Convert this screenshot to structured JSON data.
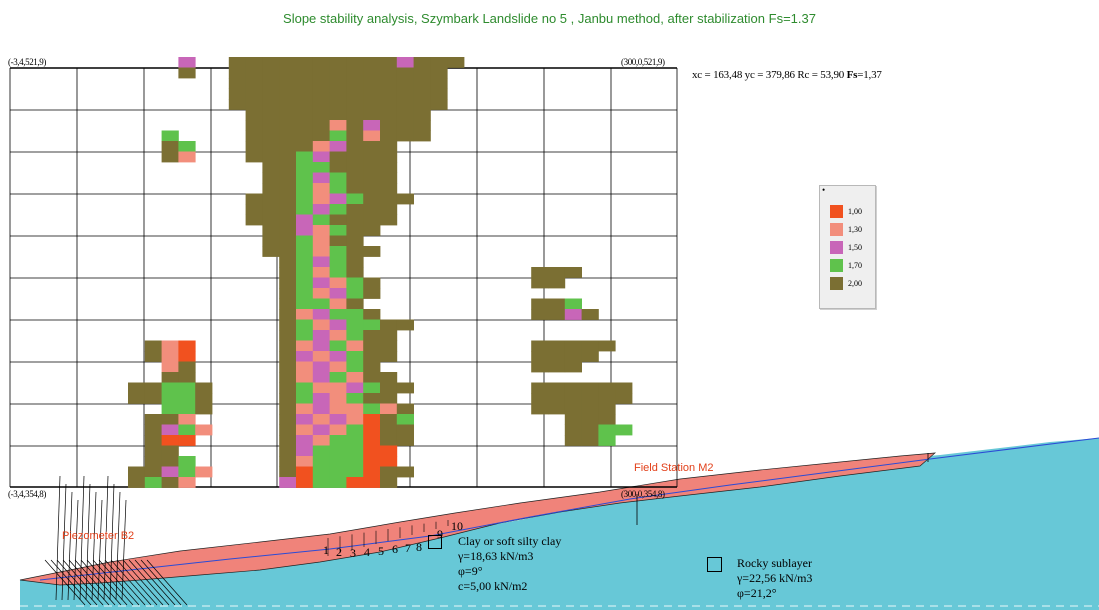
{
  "title": "Slope stability analysis, Szymbark Landslide no 5 , Janbu method, after stabilization Fs=1.37",
  "grid": {
    "corner_top_left": "(-3,4,521,9)",
    "corner_top_right": "(300,0,521,9)",
    "corner_bottom_left": "(-3,4,354,8)",
    "corner_bottom_right": "(300,0,354,8)"
  },
  "result": {
    "prefix": "xc = 163,48 yc = 379,86 Rc = 53,90",
    "fs_label": "Fs",
    "fs_value": "=1,37"
  },
  "legend": {
    "marker": "•",
    "items": [
      {
        "label": "1,00",
        "color": "#f1511f"
      },
      {
        "label": "1,30",
        "color": "#f28e7c"
      },
      {
        "label": "1,50",
        "color": "#c866b8"
      },
      {
        "label": "1,70",
        "color": "#5fc24c"
      },
      {
        "label": "2,00",
        "color": "#7b6f33"
      }
    ]
  },
  "labels": {
    "field_station": "Field Station M2",
    "piezometer": "Piezometer B2",
    "slices": [
      "1",
      "2",
      "3",
      "4",
      "5",
      "6",
      "7",
      "8",
      "9",
      "10"
    ]
  },
  "layers": {
    "clay": {
      "name": "Clay or soft silty clay",
      "gamma": "γ=18,63 kN/m3",
      "phi": "φ=9°",
      "c": "c=5,00 kN/m2"
    },
    "rock": {
      "name": "Rocky sublayer",
      "gamma": "γ=22,56 kN/m3",
      "phi": "φ=21,2°"
    }
  },
  "colors": {
    "title": "#2e8b2e",
    "water": "#67c8d7",
    "clay": "#f0837a",
    "map_label": "#e2401a",
    "piezometric_line": "#2b4bd6"
  }
}
